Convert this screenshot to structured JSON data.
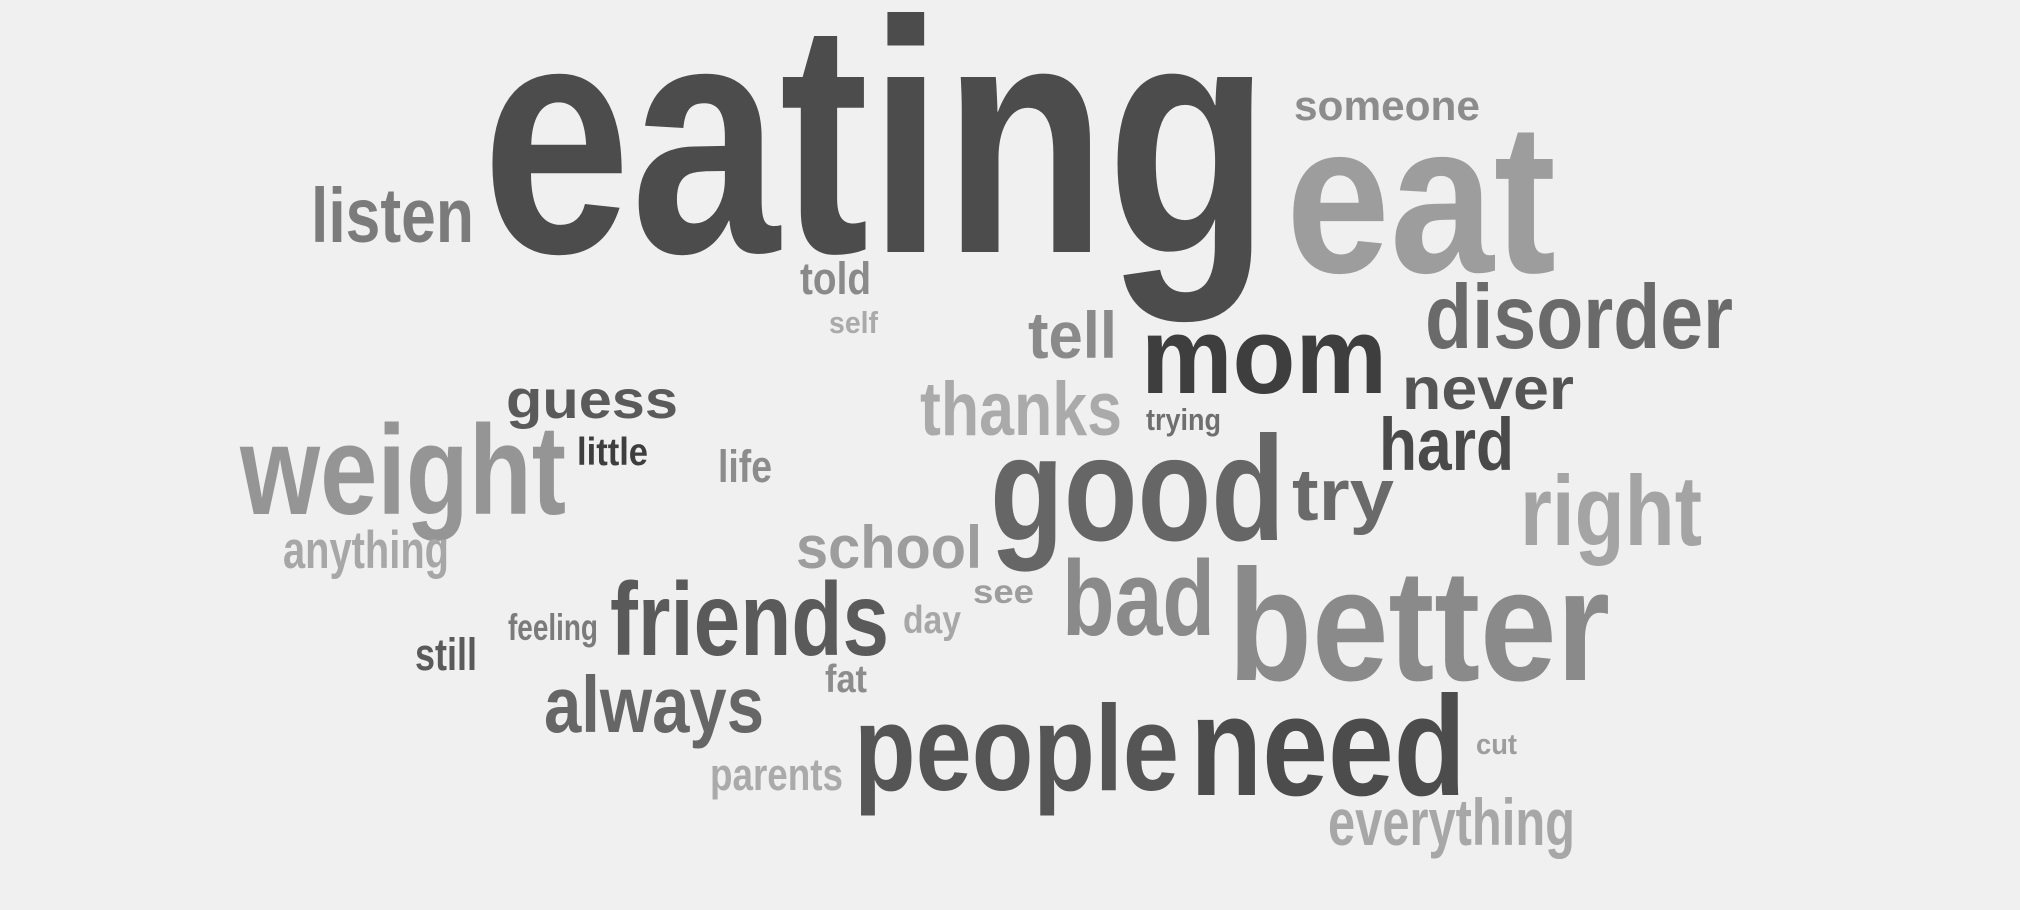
{
  "chart_data": {
    "type": "wordcloud",
    "words": [
      {
        "text": "eating",
        "color": "#4c4c4c"
      },
      {
        "text": "eat",
        "color": "#9d9d9d"
      },
      {
        "text": "someone",
        "color": "#8c8c8c"
      },
      {
        "text": "listen",
        "color": "#7b7b7b"
      },
      {
        "text": "told",
        "color": "#8a8a8a"
      },
      {
        "text": "self",
        "color": "#aaaaaa"
      },
      {
        "text": "mom",
        "color": "#3e3e3e"
      },
      {
        "text": "disorder",
        "color": "#6a6a6a"
      },
      {
        "text": "tell",
        "color": "#8a8a8a"
      },
      {
        "text": "never",
        "color": "#555555"
      },
      {
        "text": "guess",
        "color": "#5a5a5a"
      },
      {
        "text": "thanks",
        "color": "#aaaaaa"
      },
      {
        "text": "trying",
        "color": "#6f6f6f"
      },
      {
        "text": "hard",
        "color": "#4a4a4a"
      },
      {
        "text": "weight",
        "color": "#959595"
      },
      {
        "text": "little",
        "color": "#3e3e3e"
      },
      {
        "text": "life",
        "color": "#8c8c8c"
      },
      {
        "text": "good",
        "color": "#666666"
      },
      {
        "text": "try",
        "color": "#6a6a6a"
      },
      {
        "text": "right",
        "color": "#a4a4a4"
      },
      {
        "text": "anything",
        "color": "#a7a7a7"
      },
      {
        "text": "school",
        "color": "#9d9d9d"
      },
      {
        "text": "bad",
        "color": "#8a8a8a"
      },
      {
        "text": "better",
        "color": "#8a8a8a"
      },
      {
        "text": "friends",
        "color": "#5a5a5a"
      },
      {
        "text": "see",
        "color": "#9d9d9d"
      },
      {
        "text": "day",
        "color": "#a7a7a7"
      },
      {
        "text": "feeling",
        "color": "#7b7b7b"
      },
      {
        "text": "still",
        "color": "#5a5a5a"
      },
      {
        "text": "always",
        "color": "#666666"
      },
      {
        "text": "fat",
        "color": "#8c8c8c"
      },
      {
        "text": "people",
        "color": "#555555"
      },
      {
        "text": "need",
        "color": "#4c4c4c"
      },
      {
        "text": "cut",
        "color": "#9d9d9d"
      },
      {
        "text": "parents",
        "color": "#aaaaaa"
      },
      {
        "text": "everything",
        "color": "#a7a7a7"
      }
    ]
  }
}
